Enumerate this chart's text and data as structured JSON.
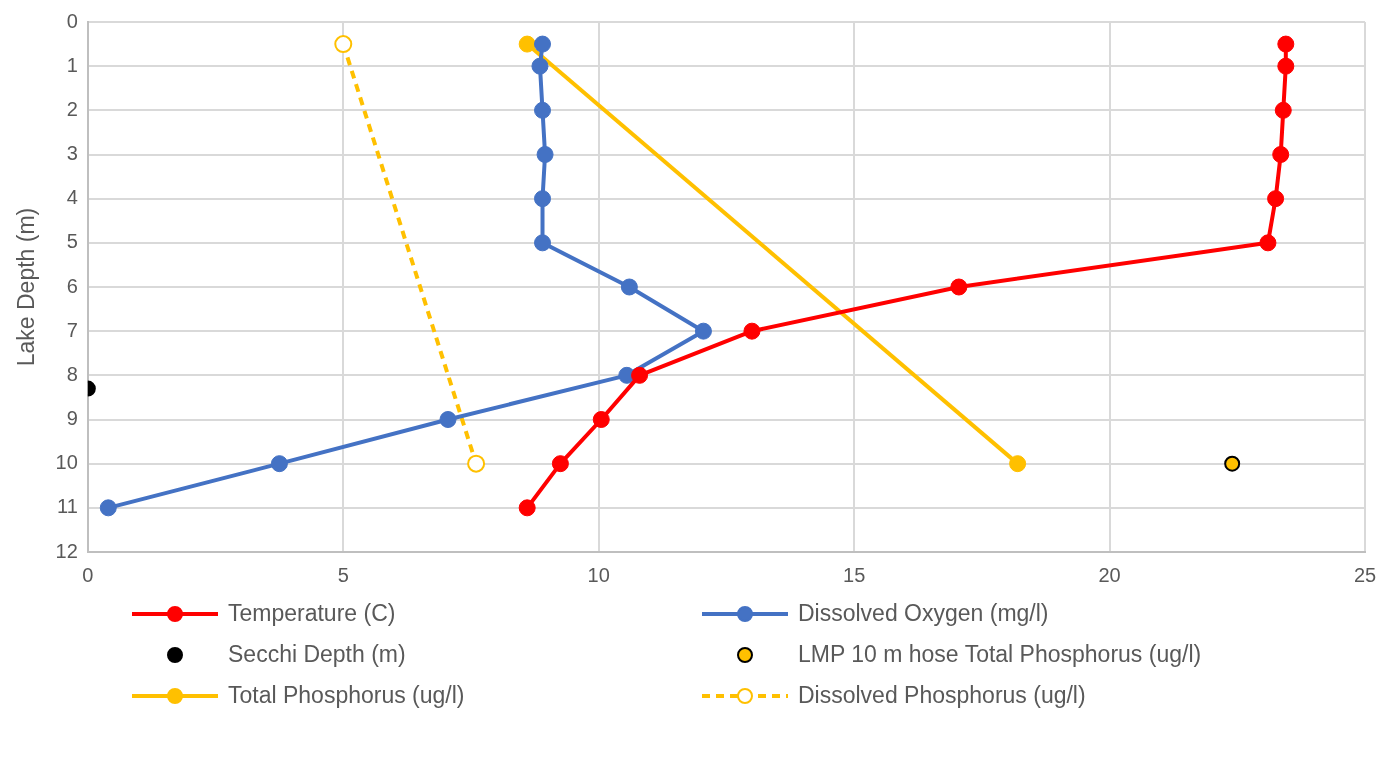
{
  "chart_data": {
    "type": "line",
    "ylabel": "Lake Depth (m)",
    "xlim": [
      0,
      25
    ],
    "xticks": [
      0,
      5,
      10,
      15,
      20,
      25
    ],
    "ylim": [
      12,
      0
    ],
    "yticks": [
      0,
      1,
      2,
      3,
      4,
      5,
      6,
      7,
      8,
      9,
      10,
      11,
      12
    ],
    "grid": true,
    "legend": "bottom",
    "marker": "circle",
    "series": [
      {
        "name": "Temperature (C)",
        "type": "line",
        "color": "#ff0000",
        "x": [
          23.45,
          23.45,
          23.4,
          23.35,
          23.25,
          23.1,
          17.05,
          13.0,
          10.8,
          10.05,
          9.25,
          8.6
        ],
        "values": [
          0.5,
          1,
          2,
          3,
          4,
          5,
          6,
          7,
          8,
          9,
          10,
          11
        ]
      },
      {
        "name": "Dissolved Oxygen (mg/l)",
        "type": "line",
        "color": "#4472c4",
        "x": [
          8.9,
          8.85,
          8.9,
          8.95,
          8.9,
          8.9,
          10.6,
          12.05,
          10.55,
          7.05,
          3.75,
          0.4
        ],
        "values": [
          0.5,
          1,
          2,
          3,
          4,
          5,
          6,
          7,
          8,
          9,
          10,
          11
        ]
      },
      {
        "name": "Secchi Depth (m)",
        "type": "scatter",
        "color": "#000000",
        "x": [
          0
        ],
        "values": [
          8.3
        ]
      },
      {
        "name": "LMP 10 m hose Total Phosphorus (ug/l)",
        "type": "scatter",
        "color": "#ffc000",
        "x": [
          22.4
        ],
        "values": [
          10
        ]
      },
      {
        "name": "Total Phosphorus (ug/l)",
        "type": "line",
        "color": "#ffc000",
        "x": [
          8.6,
          18.2
        ],
        "values": [
          0.5,
          10
        ]
      },
      {
        "name": "Dissolved Phosphorus (ug/l)",
        "type": "line",
        "color": "#ffc000",
        "line_style": "dashed",
        "x": [
          5.0,
          7.6
        ],
        "values": [
          0.5,
          10
        ]
      }
    ]
  }
}
